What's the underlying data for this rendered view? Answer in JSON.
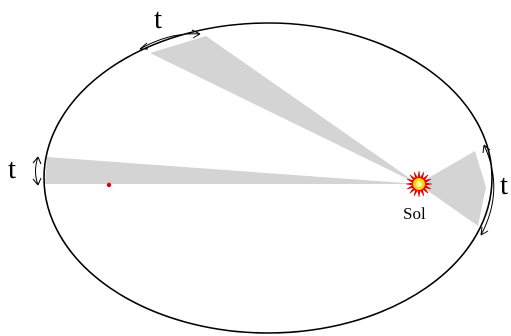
{
  "labels": {
    "time_top": "t",
    "time_left": "t",
    "time_right": "t",
    "sun": "Sol"
  },
  "colors": {
    "orbit": "#000000",
    "swept_area": "#d4d4d4",
    "center_dot": "#dd0000",
    "sun_rays": "#ff0000",
    "sun_core": "#ffd700"
  },
  "icons": {
    "sun": "sun-star-icon"
  }
}
